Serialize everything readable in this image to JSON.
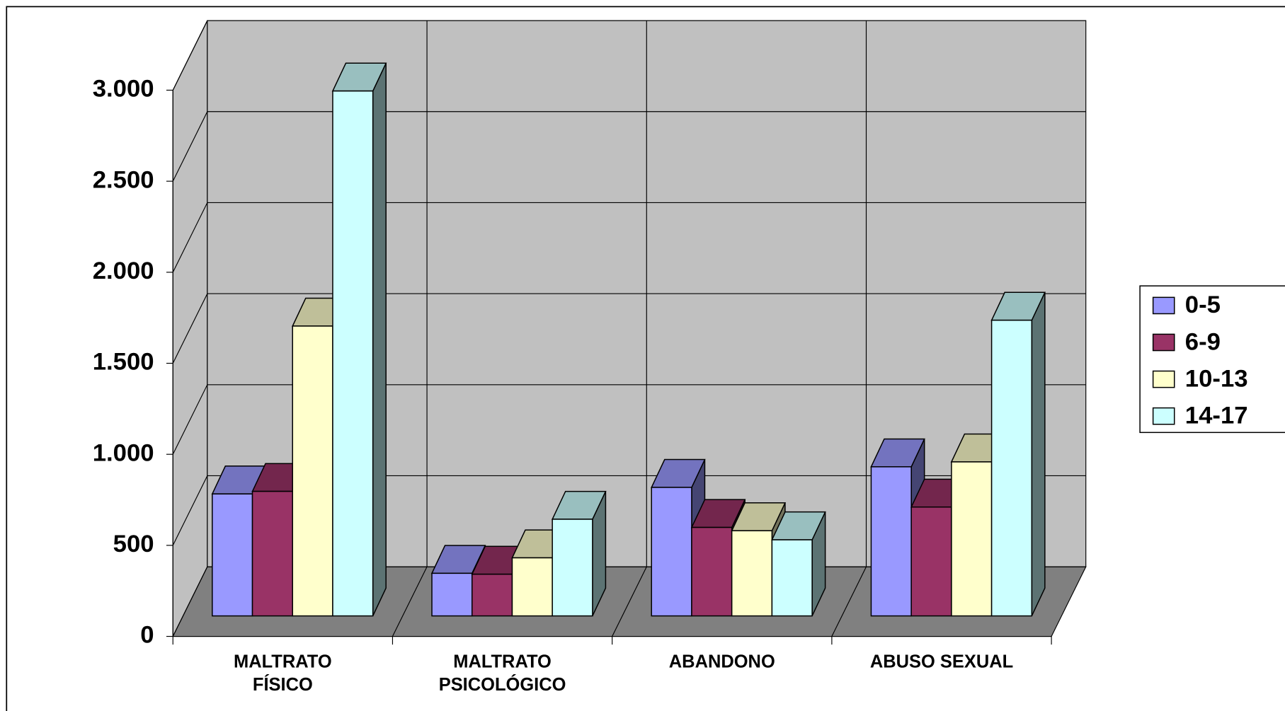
{
  "chart_data": {
    "type": "bar3d",
    "categories": [
      "MALTRATO\nFÍSICO",
      "MALTRATO\nPSICOLÓGICO",
      "ABANDONO",
      "ABUSO SEXUAL"
    ],
    "series": [
      {
        "name": "0-5",
        "color": "#9999ff",
        "values": [
          670,
          234,
          706,
          819
        ]
      },
      {
        "name": "6-9",
        "color": "#993366",
        "values": [
          684,
          229,
          486,
          598
        ]
      },
      {
        "name": "10-13",
        "color": "#ffffcc",
        "values": [
          1592,
          319,
          468,
          846
        ]
      },
      {
        "name": "14-17",
        "color": "#ccffff",
        "values": [
          2883,
          531,
          418,
          1624
        ]
      }
    ],
    "ylim": [
      0,
      3000
    ],
    "yticks": [
      0,
      500,
      {
        "value": 1000,
        "label": "1.000"
      },
      {
        "value": 1500,
        "label": "1.500"
      },
      {
        "value": 2000,
        "label": "2.000"
      },
      {
        "value": 2500,
        "label": "2.500"
      },
      {
        "value": 3000,
        "label": "3.000"
      }
    ],
    "grid": true,
    "legend": "right"
  }
}
